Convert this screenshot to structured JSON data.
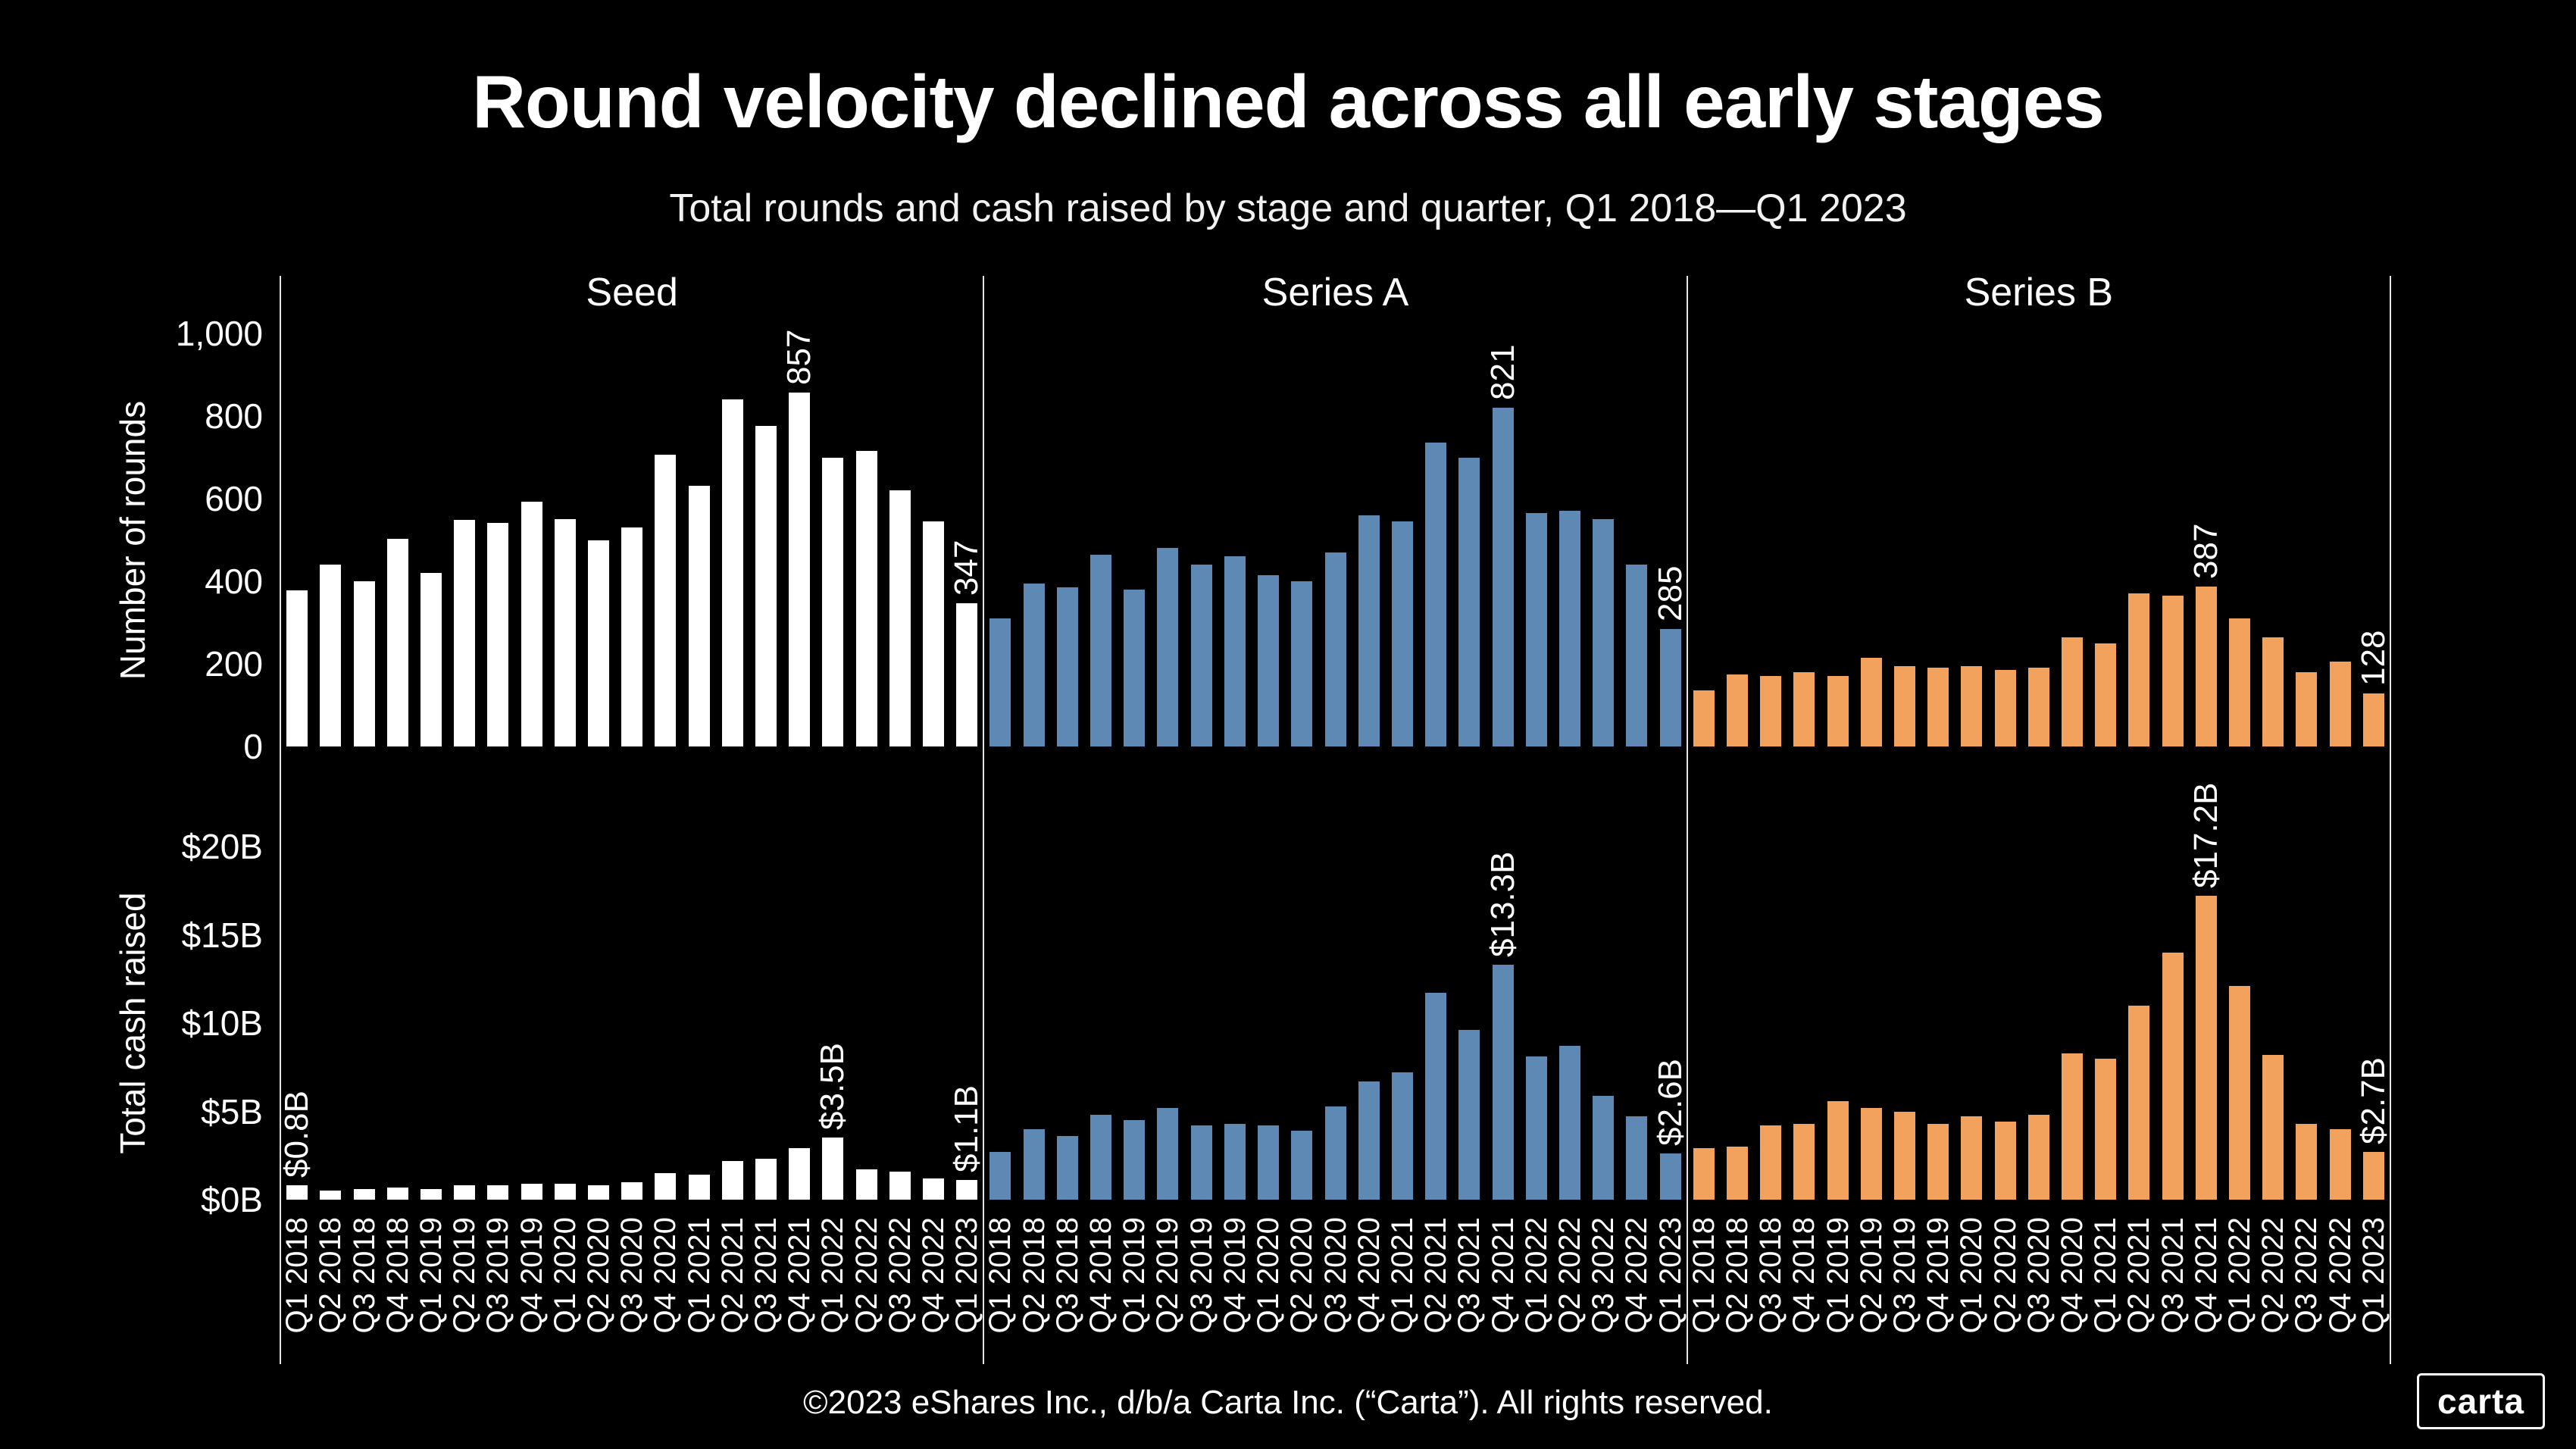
{
  "page": {
    "title": "Round velocity declined across all early stages",
    "subtitle": "Total rounds and cash raised by stage and quarter, Q1 2018—Q1 2023",
    "footer": "©2023 eShares Inc., d/b/a Carta Inc. (“Carta”). All rights reserved.",
    "logo_text": "carta",
    "background_color": "#000000",
    "text_color": "#FFFFFF"
  },
  "chart_data": {
    "type": "bar",
    "layout": "3 stage columns (Seed, Series A, Series B) x 2 metric rows (rounds, cash), shared quarterly x-axis, dark background, no gridlines, legend none",
    "quarters": [
      "Q1 2018",
      "Q2 2018",
      "Q3 2018",
      "Q4 2018",
      "Q1 2019",
      "Q2 2019",
      "Q3 2019",
      "Q4 2019",
      "Q1 2020",
      "Q2 2020",
      "Q3 2020",
      "Q4 2020",
      "Q1 2021",
      "Q2 2021",
      "Q3 2021",
      "Q4 2021",
      "Q1 2022",
      "Q2 2022",
      "Q3 2022",
      "Q4 2022",
      "Q1 2023"
    ],
    "rows": [
      {
        "label": "Number of rounds",
        "max": 1000,
        "axis_ticks": [
          {
            "label": "1,000",
            "value": 1000
          },
          {
            "label": "800",
            "value": 800
          },
          {
            "label": "600",
            "value": 600
          },
          {
            "label": "400",
            "value": 400
          },
          {
            "label": "200",
            "value": 200
          },
          {
            "label": "0",
            "value": 0
          }
        ]
      },
      {
        "label": "Total cash raised",
        "max": 20,
        "axis_ticks": [
          {
            "label": "$20B",
            "value": 20
          },
          {
            "label": "$15B",
            "value": 15
          },
          {
            "label": "$10B",
            "value": 10
          },
          {
            "label": "$5B",
            "value": 5
          },
          {
            "label": "$0B",
            "value": 0
          }
        ]
      }
    ],
    "panels": [
      {
        "stage": "Seed",
        "color": "#FFFFFF",
        "rounds": [
          378,
          441,
          400,
          503,
          420,
          549,
          541,
          592,
          551,
          500,
          530,
          706,
          632,
          840,
          777,
          857,
          700,
          716,
          620,
          545,
          347
        ],
        "cash_b": [
          0.8,
          0.5,
          0.6,
          0.7,
          0.6,
          0.8,
          0.8,
          0.9,
          0.9,
          0.8,
          1.0,
          1.5,
          1.4,
          2.2,
          2.3,
          2.9,
          3.5,
          1.7,
          1.6,
          1.2,
          1.1
        ],
        "rounds_annotations": [
          {
            "index": 15,
            "text": "857"
          },
          {
            "index": 20,
            "text": "347"
          }
        ],
        "cash_annotations": [
          {
            "index": 0,
            "text": "$0.8B"
          },
          {
            "index": 16,
            "text": "$3.5B"
          },
          {
            "index": 20,
            "text": "$1.1B"
          }
        ]
      },
      {
        "stage": "Series A",
        "color": "#5D89B4",
        "rounds": [
          310,
          395,
          385,
          465,
          380,
          480,
          440,
          460,
          415,
          400,
          470,
          560,
          545,
          735,
          700,
          821,
          565,
          570,
          550,
          440,
          285
        ],
        "cash_b": [
          2.7,
          4.0,
          3.6,
          4.8,
          4.5,
          5.2,
          4.2,
          4.3,
          4.2,
          3.9,
          5.3,
          6.7,
          7.2,
          11.7,
          9.6,
          13.3,
          8.1,
          8.7,
          5.9,
          4.7,
          2.6
        ],
        "rounds_annotations": [
          {
            "index": 15,
            "text": "821"
          },
          {
            "index": 20,
            "text": "285"
          }
        ],
        "cash_annotations": [
          {
            "index": 15,
            "text": "$13.3B"
          },
          {
            "index": 20,
            "text": "$2.6B"
          }
        ]
      },
      {
        "stage": "Series B",
        "color": "#F2A25C",
        "rounds": [
          135,
          175,
          170,
          180,
          170,
          215,
          195,
          190,
          195,
          185,
          190,
          265,
          250,
          370,
          365,
          387,
          310,
          265,
          180,
          205,
          128
        ],
        "cash_b": [
          2.9,
          3.0,
          4.2,
          4.3,
          5.6,
          5.2,
          5.0,
          4.3,
          4.7,
          4.4,
          4.8,
          8.3,
          8.0,
          11.0,
          14.0,
          17.2,
          12.1,
          8.2,
          4.3,
          4.0,
          2.7
        ],
        "rounds_annotations": [
          {
            "index": 15,
            "text": "387"
          },
          {
            "index": 20,
            "text": "128"
          }
        ],
        "cash_annotations": [
          {
            "index": 15,
            "text": "$17.2B"
          },
          {
            "index": 20,
            "text": "$2.7B"
          }
        ]
      }
    ]
  }
}
